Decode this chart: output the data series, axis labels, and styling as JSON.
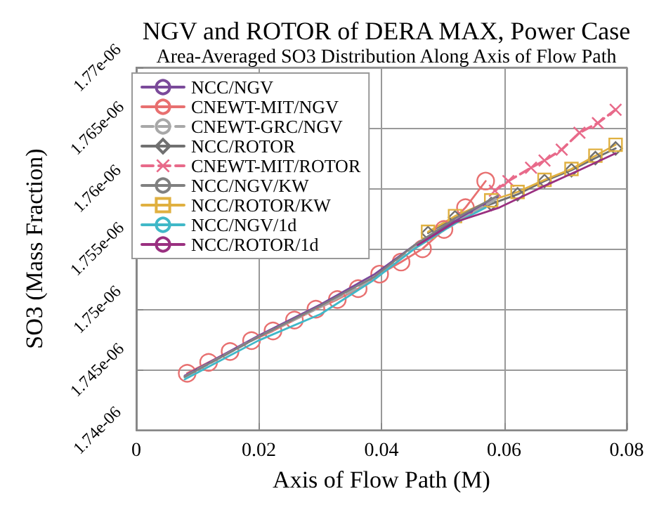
{
  "chart_data": {
    "type": "line",
    "title": "NGV and ROTOR of DERA MAX, Power Case",
    "subtitle": "Area-Averaged SO3 Distribution Along Axis of Flow Path",
    "xlabel": "Axis of Flow Path (M)",
    "ylabel": "SO3 (Mass Fraction)",
    "xlim": [
      0,
      0.08
    ],
    "xticks": [
      0,
      0.02,
      0.04,
      0.06,
      0.08
    ],
    "ylim": [
      1.74e-06,
      1.77e-06
    ],
    "yticks": [
      {
        "value": 1.74e-06,
        "label": "1.74e-06"
      },
      {
        "value": 1.745e-06,
        "label": "1.745e-06"
      },
      {
        "value": 1.75e-06,
        "label": "1.75e-06"
      },
      {
        "value": 1.755e-06,
        "label": "1.755e-06"
      },
      {
        "value": 1.76e-06,
        "label": "1.76e-06"
      },
      {
        "value": 1.765e-06,
        "label": "1.765e-06"
      },
      {
        "value": 1.77e-06,
        "label": "1.77e-06"
      }
    ],
    "grid": true,
    "legend": "top left",
    "series": [
      {
        "name": "NCC/NGV",
        "color": "#7b4a9a",
        "marker": "none",
        "line_style": "solid",
        "x": [
          0.0079,
          0.0199,
          0.0301,
          0.0389,
          0.0454,
          0.052,
          0.059
        ],
        "values": [
          1.7445e-06,
          1.7478e-06,
          1.7504e-06,
          1.7529e-06,
          1.7553e-06,
          1.7573e-06,
          1.7593e-06
        ]
      },
      {
        "name": "CNEWT-MIT/NGV",
        "color": "#e87070",
        "marker": "circle",
        "line_style": "solid",
        "x": [
          0.0083,
          0.0118,
          0.0153,
          0.0188,
          0.0223,
          0.0258,
          0.0293,
          0.0328,
          0.0362,
          0.0397,
          0.0432,
          0.0467,
          0.0502,
          0.0537,
          0.057
        ],
        "values": [
          1.7447e-06,
          1.7456e-06,
          1.7465e-06,
          1.7474e-06,
          1.7482e-06,
          1.7491e-06,
          1.75e-06,
          1.7508e-06,
          1.7517e-06,
          1.7529e-06,
          1.7539e-06,
          1.755e-06,
          1.7566e-06,
          1.7584e-06,
          1.7606e-06
        ]
      },
      {
        "name": "CNEWT-GRC/NGV",
        "color": "#a8a8a8",
        "marker": "none",
        "line_style": "dashed",
        "x": [
          0.0079,
          0.0199,
          0.0301,
          0.0389,
          0.0454,
          0.052,
          0.059
        ],
        "values": [
          1.7444e-06,
          1.7477e-06,
          1.7502e-06,
          1.7525e-06,
          1.7551e-06,
          1.7571e-06,
          1.7592e-06
        ]
      },
      {
        "name": "NCC/ROTOR",
        "color": "#707070",
        "marker": "diamond",
        "line_style": "solid",
        "x": [
          0.0476,
          0.052,
          0.0579,
          0.0622,
          0.0666,
          0.071,
          0.0749,
          0.0782
        ],
        "values": [
          1.7563e-06,
          1.7576e-06,
          1.7587e-06,
          1.7595e-06,
          1.7606e-06,
          1.7615e-06,
          1.7625e-06,
          1.7633e-06
        ]
      },
      {
        "name": "CNEWT-MIT/ROTOR",
        "color": "#e86a8a",
        "marker": "cross",
        "line_style": "dashed",
        "x": [
          0.0585,
          0.0607,
          0.0644,
          0.0666,
          0.0694,
          0.0723,
          0.0753,
          0.0782
        ],
        "values": [
          1.7598e-06,
          1.7606e-06,
          1.7617e-06,
          1.7623e-06,
          1.7632e-06,
          1.7646e-06,
          1.7654e-06,
          1.7665e-06
        ]
      },
      {
        "name": "NCC/NGV/KW",
        "color": "#808080",
        "marker": "none",
        "line_style": "solid",
        "x": [
          0.0079,
          0.0199,
          0.0301,
          0.0389,
          0.0454,
          0.052,
          0.059
        ],
        "values": [
          1.7444e-06,
          1.7477e-06,
          1.7503e-06,
          1.7527e-06,
          1.7553e-06,
          1.7575e-06,
          1.7594e-06
        ]
      },
      {
        "name": "NCC/ROTOR/KW",
        "color": "#e0b040",
        "marker": "square",
        "line_style": "solid",
        "x": [
          0.0476,
          0.052,
          0.0579,
          0.0622,
          0.0666,
          0.071,
          0.0749,
          0.0782
        ],
        "values": [
          1.7564e-06,
          1.7577e-06,
          1.759e-06,
          1.7597e-06,
          1.7607e-06,
          1.7616e-06,
          1.7627e-06,
          1.7636e-06
        ]
      },
      {
        "name": "NCC/NGV/1d",
        "color": "#40b8c8",
        "marker": "none",
        "line_style": "solid",
        "x": [
          0.0079,
          0.0199,
          0.0301,
          0.0384,
          0.0454,
          0.052,
          0.057
        ],
        "values": [
          1.7442e-06,
          1.7474e-06,
          1.7496e-06,
          1.7523e-06,
          1.755e-06,
          1.7571e-06,
          1.7584e-06
        ]
      },
      {
        "name": "NCC/ROTOR/1d",
        "color": "#9a3080",
        "marker": "none",
        "line_style": "solid",
        "x": [
          0.0459,
          0.052,
          0.0592,
          0.0666,
          0.0727,
          0.0782
        ],
        "values": [
          1.7553e-06,
          1.7572e-06,
          1.7584e-06,
          1.7602e-06,
          1.7616e-06,
          1.7629e-06
        ]
      }
    ]
  }
}
